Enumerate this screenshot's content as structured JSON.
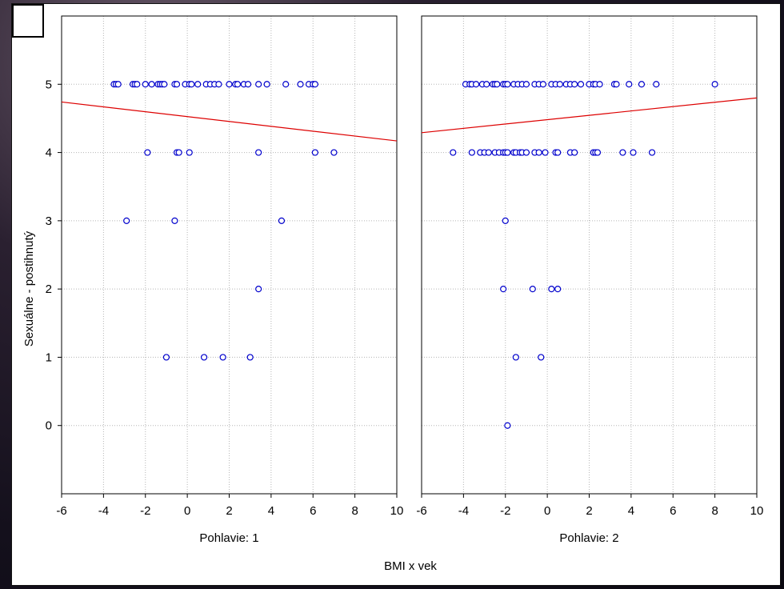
{
  "chart_data": {
    "type": "scatter",
    "xlabel": "BMI x vek",
    "ylabel": "Sexuálne - postihnutý",
    "x_ticks": [
      "-6",
      "-4",
      "-2",
      "0",
      "2",
      "4",
      "6",
      "8",
      "10"
    ],
    "y_ticks": [
      "0",
      "1",
      "2",
      "3",
      "4",
      "5"
    ],
    "xlim": [
      -6,
      10
    ],
    "ylim": [
      -1,
      6
    ],
    "grid": true,
    "marker_color": "#0000cc",
    "fit_color": "#dd0000",
    "panels": [
      {
        "label": "Pohlavie: 1",
        "fit_line": {
          "x": [
            -6,
            10
          ],
          "y": [
            4.74,
            4.17
          ]
        },
        "points": [
          [
            -3.5,
            5
          ],
          [
            -3.4,
            5
          ],
          [
            -3.3,
            5
          ],
          [
            -2.6,
            5
          ],
          [
            -2.5,
            5
          ],
          [
            -2.4,
            5
          ],
          [
            -2.0,
            5
          ],
          [
            -1.7,
            5
          ],
          [
            -1.4,
            5
          ],
          [
            -1.3,
            5
          ],
          [
            -1.2,
            5
          ],
          [
            -1.1,
            5
          ],
          [
            -0.6,
            5
          ],
          [
            -0.5,
            5
          ],
          [
            -0.1,
            5
          ],
          [
            0.1,
            5
          ],
          [
            0.2,
            5
          ],
          [
            0.5,
            5
          ],
          [
            0.9,
            5
          ],
          [
            1.1,
            5
          ],
          [
            1.3,
            5
          ],
          [
            1.5,
            5
          ],
          [
            2.0,
            5
          ],
          [
            2.3,
            5
          ],
          [
            2.4,
            5
          ],
          [
            2.7,
            5
          ],
          [
            2.9,
            5
          ],
          [
            3.4,
            5
          ],
          [
            3.8,
            5
          ],
          [
            4.7,
            5
          ],
          [
            5.4,
            5
          ],
          [
            5.8,
            5
          ],
          [
            6.0,
            5
          ],
          [
            6.1,
            5
          ],
          [
            -1.9,
            4
          ],
          [
            -0.5,
            4
          ],
          [
            -0.4,
            4
          ],
          [
            0.1,
            4
          ],
          [
            3.4,
            4
          ],
          [
            6.1,
            4
          ],
          [
            7.0,
            4
          ],
          [
            -2.9,
            3
          ],
          [
            -0.6,
            3
          ],
          [
            4.5,
            3
          ],
          [
            3.4,
            2
          ],
          [
            -1.0,
            1
          ],
          [
            0.8,
            1
          ],
          [
            1.7,
            1
          ],
          [
            3.0,
            1
          ]
        ]
      },
      {
        "label": "Pohlavie: 2",
        "fit_line": {
          "x": [
            -6,
            10
          ],
          "y": [
            4.29,
            4.8
          ]
        },
        "points": [
          [
            -3.9,
            5
          ],
          [
            -3.7,
            5
          ],
          [
            -3.6,
            5
          ],
          [
            -3.4,
            5
          ],
          [
            -3.1,
            5
          ],
          [
            -2.9,
            5
          ],
          [
            -2.6,
            5
          ],
          [
            -2.5,
            5
          ],
          [
            -2.4,
            5
          ],
          [
            -2.1,
            5
          ],
          [
            -2.0,
            5
          ],
          [
            -1.9,
            5
          ],
          [
            -1.6,
            5
          ],
          [
            -1.4,
            5
          ],
          [
            -1.2,
            5
          ],
          [
            -1.0,
            5
          ],
          [
            -0.6,
            5
          ],
          [
            -0.4,
            5
          ],
          [
            -0.2,
            5
          ],
          [
            0.2,
            5
          ],
          [
            0.4,
            5
          ],
          [
            0.6,
            5
          ],
          [
            0.9,
            5
          ],
          [
            1.1,
            5
          ],
          [
            1.3,
            5
          ],
          [
            1.6,
            5
          ],
          [
            2.0,
            5
          ],
          [
            2.2,
            5
          ],
          [
            2.3,
            5
          ],
          [
            2.5,
            5
          ],
          [
            3.2,
            5
          ],
          [
            3.3,
            5
          ],
          [
            3.9,
            5
          ],
          [
            4.5,
            5
          ],
          [
            5.2,
            5
          ],
          [
            8.0,
            5
          ],
          [
            -4.5,
            4
          ],
          [
            -3.6,
            4
          ],
          [
            -3.2,
            4
          ],
          [
            -3.0,
            4
          ],
          [
            -2.8,
            4
          ],
          [
            -2.5,
            4
          ],
          [
            -2.3,
            4
          ],
          [
            -2.1,
            4
          ],
          [
            -2.0,
            4
          ],
          [
            -1.9,
            4
          ],
          [
            -1.6,
            4
          ],
          [
            -1.5,
            4
          ],
          [
            -1.3,
            4
          ],
          [
            -1.2,
            4
          ],
          [
            -1.0,
            4
          ],
          [
            -0.6,
            4
          ],
          [
            -0.4,
            4
          ],
          [
            -0.1,
            4
          ],
          [
            0.4,
            4
          ],
          [
            0.5,
            4
          ],
          [
            1.1,
            4
          ],
          [
            1.3,
            4
          ],
          [
            2.2,
            4
          ],
          [
            2.3,
            4
          ],
          [
            2.4,
            4
          ],
          [
            3.6,
            4
          ],
          [
            4.1,
            4
          ],
          [
            5.0,
            4
          ],
          [
            -2.0,
            3
          ],
          [
            -2.1,
            2
          ],
          [
            -0.7,
            2
          ],
          [
            0.2,
            2
          ],
          [
            0.5,
            2
          ],
          [
            -1.5,
            1
          ],
          [
            -0.3,
            1
          ],
          [
            -1.9,
            0
          ]
        ]
      }
    ]
  }
}
